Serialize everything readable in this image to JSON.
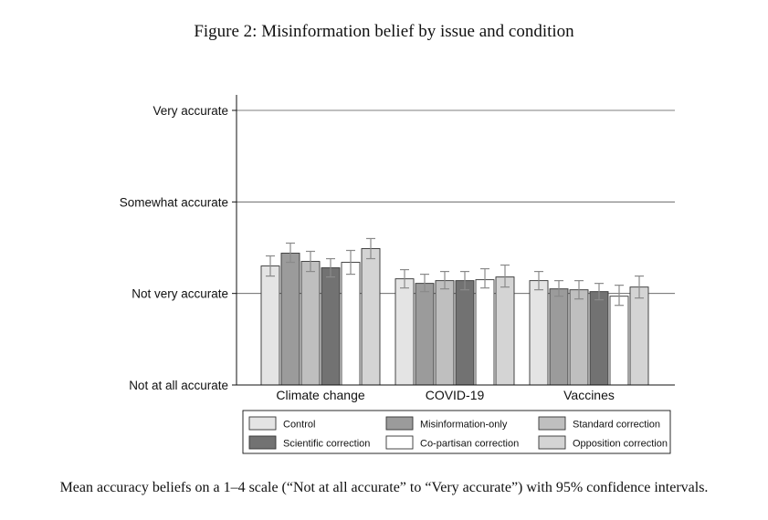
{
  "figure": {
    "title": "Figure 2: Misinformation belief by issue and condition",
    "caption": "Mean accuracy beliefs on a 1–4 scale (“Not at all accurate” to “Very accurate”) with 95% confidence intervals."
  },
  "chart_data": {
    "type": "bar",
    "title": "",
    "xlabel": "",
    "ylabel": "",
    "ylim": [
      1,
      4
    ],
    "grid": true,
    "legend_position": "bottom",
    "yticks": [
      {
        "value": 1,
        "label": "Not at all accurate"
      },
      {
        "value": 2,
        "label": "Not very accurate"
      },
      {
        "value": 3,
        "label": "Somewhat accurate"
      },
      {
        "value": 4,
        "label": "Very accurate"
      }
    ],
    "categories": [
      "Climate change",
      "COVID-19",
      "Vaccines"
    ],
    "series": [
      {
        "name": "Control",
        "color": "#e4e4e4",
        "values": [
          2.3,
          2.16,
          2.14
        ],
        "ci_low": [
          2.19,
          2.06,
          2.04
        ],
        "ci_high": [
          2.41,
          2.26,
          2.24
        ]
      },
      {
        "name": "Misinformation-only",
        "color": "#9b9b9b",
        "values": [
          2.44,
          2.11,
          2.05
        ],
        "ci_low": [
          2.34,
          2.02,
          1.97
        ],
        "ci_high": [
          2.55,
          2.21,
          2.14
        ]
      },
      {
        "name": "Standard correction",
        "color": "#bfbfbf",
        "values": [
          2.35,
          2.14,
          2.04
        ],
        "ci_low": [
          2.24,
          2.05,
          1.94
        ],
        "ci_high": [
          2.46,
          2.24,
          2.14
        ]
      },
      {
        "name": "Scientific correction",
        "color": "#727272",
        "values": [
          2.28,
          2.14,
          2.02
        ],
        "ci_low": [
          2.18,
          2.04,
          1.93
        ],
        "ci_high": [
          2.38,
          2.24,
          2.11
        ]
      },
      {
        "name": "Co-partisan correction",
        "color": "#ffffff",
        "values": [
          2.34,
          2.15,
          1.97
        ],
        "ci_low": [
          2.21,
          2.06,
          1.87
        ],
        "ci_high": [
          2.47,
          2.27,
          2.09
        ]
      },
      {
        "name": "Opposition correction",
        "color": "#d4d4d4",
        "values": [
          2.49,
          2.18,
          2.07
        ],
        "ci_low": [
          2.38,
          2.07,
          1.95
        ],
        "ci_high": [
          2.6,
          2.31,
          2.19
        ]
      }
    ]
  }
}
